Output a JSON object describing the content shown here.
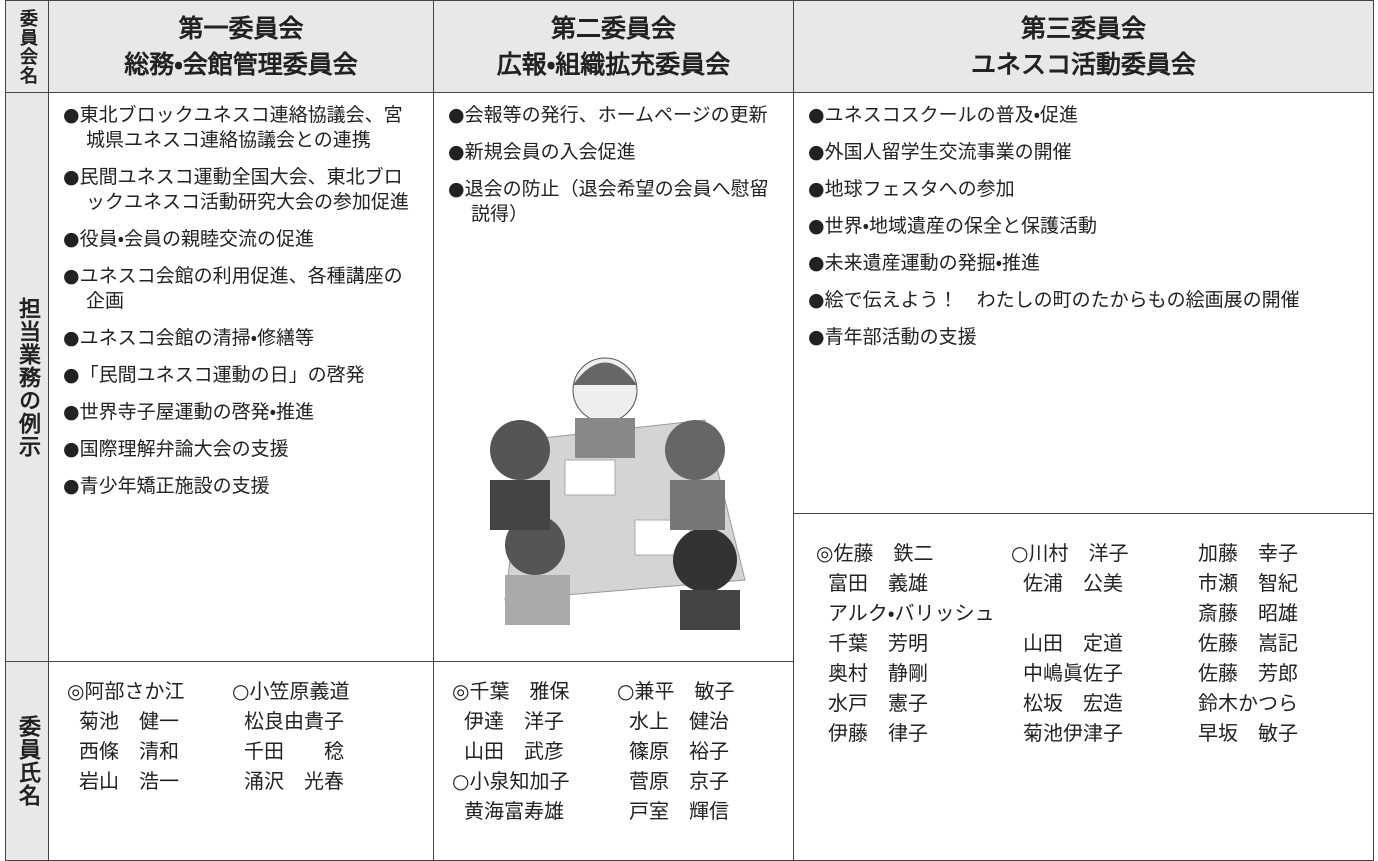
{
  "row_labels": [
    "委員会名",
    "担当業務の例示",
    "委員氏名"
  ],
  "committees": [
    {
      "name": "第一委員会",
      "subtitle": "総務・会館管理委員会",
      "duties": [
        "●東北ブロックユネスコ連絡協議会、宮城県ユネスコ連絡協議会との連携",
        "●民間ユネスコ運動全国大会、東北ブロックユネスコ活動研究大会の参加促進",
        "●役員・会員の親睦交流の促進",
        "●ユネスコ会館の利用促進、各種講座の企画",
        "●ユネスコ会館の清掃・修繕等",
        "●「民間ユネスコ運動の日」の啓発",
        "●世界寺子屋運動の啓発・推進",
        "●国際理解弁論大会の支援",
        "●青少年矯正施設の支援"
      ],
      "members": [
        [
          "◎阿部さか江",
          "○小笠原義道"
        ],
        [
          "菊池　健一",
          "松良由貴子"
        ],
        [
          "西條　清和",
          "千田　　稔"
        ],
        [
          "岩山　浩一",
          "涌沢　光春"
        ]
      ]
    },
    {
      "name": "第二委員会",
      "subtitle": "広報・組織拡充委員会",
      "duties": [
        "●会報等の発行、ホームページの更新",
        "●新規会員の入会促進",
        "●退会の防止（退会希望の会員へ慰留説得）"
      ],
      "members": [
        [
          "◎千葉　雅保",
          "○兼平　敏子"
        ],
        [
          "伊達　洋子",
          "水上　健治"
        ],
        [
          "山田　武彦",
          "篠原　裕子"
        ],
        [
          "○小泉知加子",
          "菅原　京子"
        ],
        [
          "黄海富寿雄",
          "戸室　輝信"
        ]
      ]
    },
    {
      "name": "第三委員会",
      "subtitle": "ユネスコ活動委員会",
      "duties": [
        "●ユネスコスクールの普及・促進",
        "●外国人留学生交流事業の開催",
        "●地球フェスタへの参加",
        "●世界・地域遺産の保全と保護活動",
        "●未来遺産運動の発掘・推進",
        "●絵で伝えよう！　わたしの町のたからもの絵画展の開催",
        "●青年部活動の支援"
      ],
      "members": [
        [
          "◎佐藤　鉄二",
          "○川村　洋子",
          "加藤　幸子"
        ],
        [
          "富田　義雄",
          "佐浦　公美",
          "市瀬　智紀"
        ],
        [
          "アルク・バリッシュ",
          "斎藤　昭雄"
        ],
        [
          "千葉　芳明",
          "山田　定道",
          "佐藤　嵩記"
        ],
        [
          "奥村　静剛",
          "中嶋眞佐子",
          "佐藤　芳郎"
        ],
        [
          "水戸　憲子",
          "松坂　宏造",
          "鈴木かつら"
        ],
        [
          "伊藤　律子",
          "菊池伊津子",
          "早坂　敏子"
        ]
      ]
    }
  ]
}
